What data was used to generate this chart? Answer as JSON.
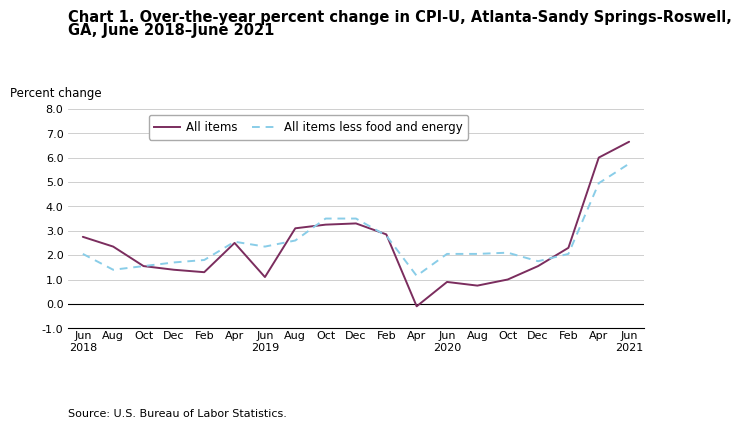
{
  "title_line1": "Chart 1. Over-the-year percent change in CPI-U, Atlanta-Sandy Springs-Roswell,",
  "title_line2": "GA, June 2018–June 2021",
  "ylabel": "Percent change",
  "source": "Source: U.S. Bureau of Labor Statistics.",
  "x_labels": [
    "Jun\n2018",
    "Aug",
    "Oct",
    "Dec",
    "Feb",
    "Apr",
    "Jun\n2019",
    "Aug",
    "Oct",
    "Dec",
    "Feb",
    "Apr",
    "Jun\n2020",
    "Aug",
    "Oct",
    "Dec",
    "Feb",
    "Apr",
    "Jun\n2021"
  ],
  "all_items": [
    2.75,
    2.35,
    1.55,
    1.4,
    1.3,
    2.5,
    1.1,
    3.1,
    3.25,
    3.3,
    2.85,
    -0.1,
    0.9,
    0.75,
    1.0,
    1.55,
    2.3,
    6.0,
    6.65
  ],
  "all_items_less": [
    2.05,
    1.4,
    1.55,
    1.7,
    1.8,
    2.55,
    2.35,
    2.6,
    3.5,
    3.5,
    2.8,
    1.15,
    2.05,
    2.05,
    2.1,
    1.75,
    2.05,
    4.95,
    5.75
  ],
  "all_items_color": "#7B2D5E",
  "all_items_less_color": "#89CDE8",
  "ylim": [
    -1.0,
    8.0
  ],
  "yticks": [
    -1.0,
    0.0,
    1.0,
    2.0,
    3.0,
    4.0,
    5.0,
    6.0,
    7.0,
    8.0
  ],
  "title_fontsize": 10.5,
  "ylabel_fontsize": 8.5,
  "tick_fontsize": 8.0,
  "legend_fontsize": 8.5,
  "source_fontsize": 8.0
}
